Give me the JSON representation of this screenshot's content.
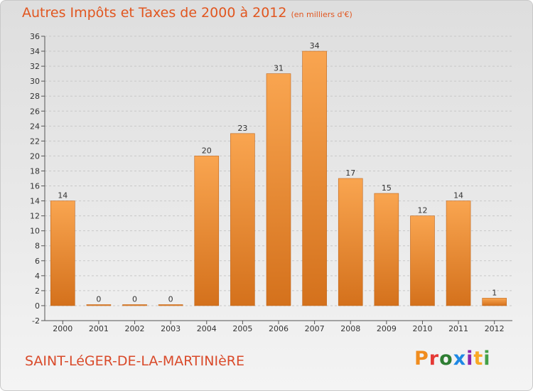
{
  "header": {
    "title": "Autres Impôts et Taxes de 2000 à 2012",
    "subtitle": "(en milliers d'€)"
  },
  "footer": {
    "commune": "SAINT-LéGER-DE-LA-MARTINIèRE",
    "logo_letters": [
      "P",
      "r",
      "o",
      "x",
      "i",
      "t",
      "i"
    ],
    "logo_colors": [
      "#f08c1e",
      "#e53935",
      "#2e7d32",
      "#1e88e5",
      "#8e24aa",
      "#f9a825",
      "#43a047"
    ]
  },
  "colors": {
    "bar_light": "#f9a550",
    "bar_dark": "#d4711c",
    "axis": "#555555",
    "grid": "#c8c8c8"
  },
  "chart_data": {
    "type": "bar",
    "categories": [
      "2000",
      "2001",
      "2002",
      "2003",
      "2004",
      "2005",
      "2006",
      "2007",
      "2008",
      "2009",
      "2010",
      "2011",
      "2012"
    ],
    "values": [
      14,
      0,
      0,
      0,
      20,
      23,
      31,
      34,
      17,
      15,
      12,
      14,
      1
    ],
    "ylim": [
      -2,
      36
    ],
    "yticks": [
      -2,
      0,
      2,
      4,
      6,
      8,
      10,
      12,
      14,
      16,
      18,
      20,
      22,
      24,
      26,
      28,
      30,
      32,
      34,
      36
    ],
    "grid": true
  }
}
